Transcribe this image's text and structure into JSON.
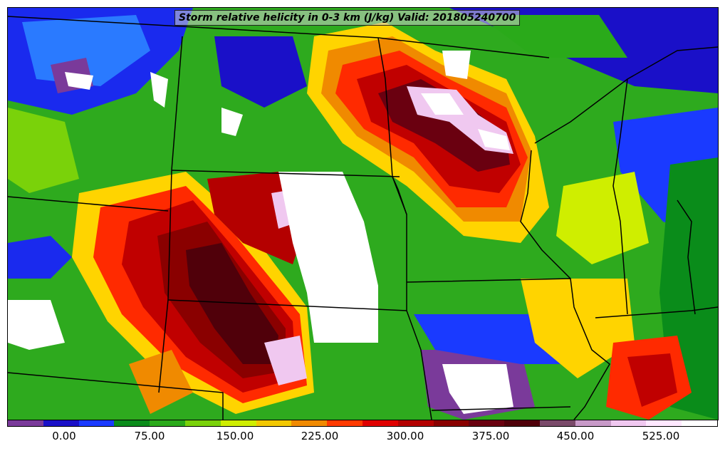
{
  "title": "Storm relative helicity in 0-3 km (J/kg) Valid: 201805240700",
  "colorbar": {
    "colors": [
      "#7a3a9a",
      "#1a10c8",
      "#1a3aff",
      "#0a8c1a",
      "#2aaa1a",
      "#7ad20a",
      "#cfee00",
      "#f2c800",
      "#f08a00",
      "#ff3a00",
      "#e00000",
      "#b40000",
      "#8a0000",
      "#6a0010",
      "#50000a",
      "#7a4a6a",
      "#c89ac8",
      "#f0c8f0",
      "#ffe8ff",
      "#ffffff"
    ],
    "tick_labels": [
      "0.00",
      "75.00",
      "150.00",
      "225.00",
      "300.00",
      "375.00",
      "450.00",
      "525.00"
    ]
  }
}
